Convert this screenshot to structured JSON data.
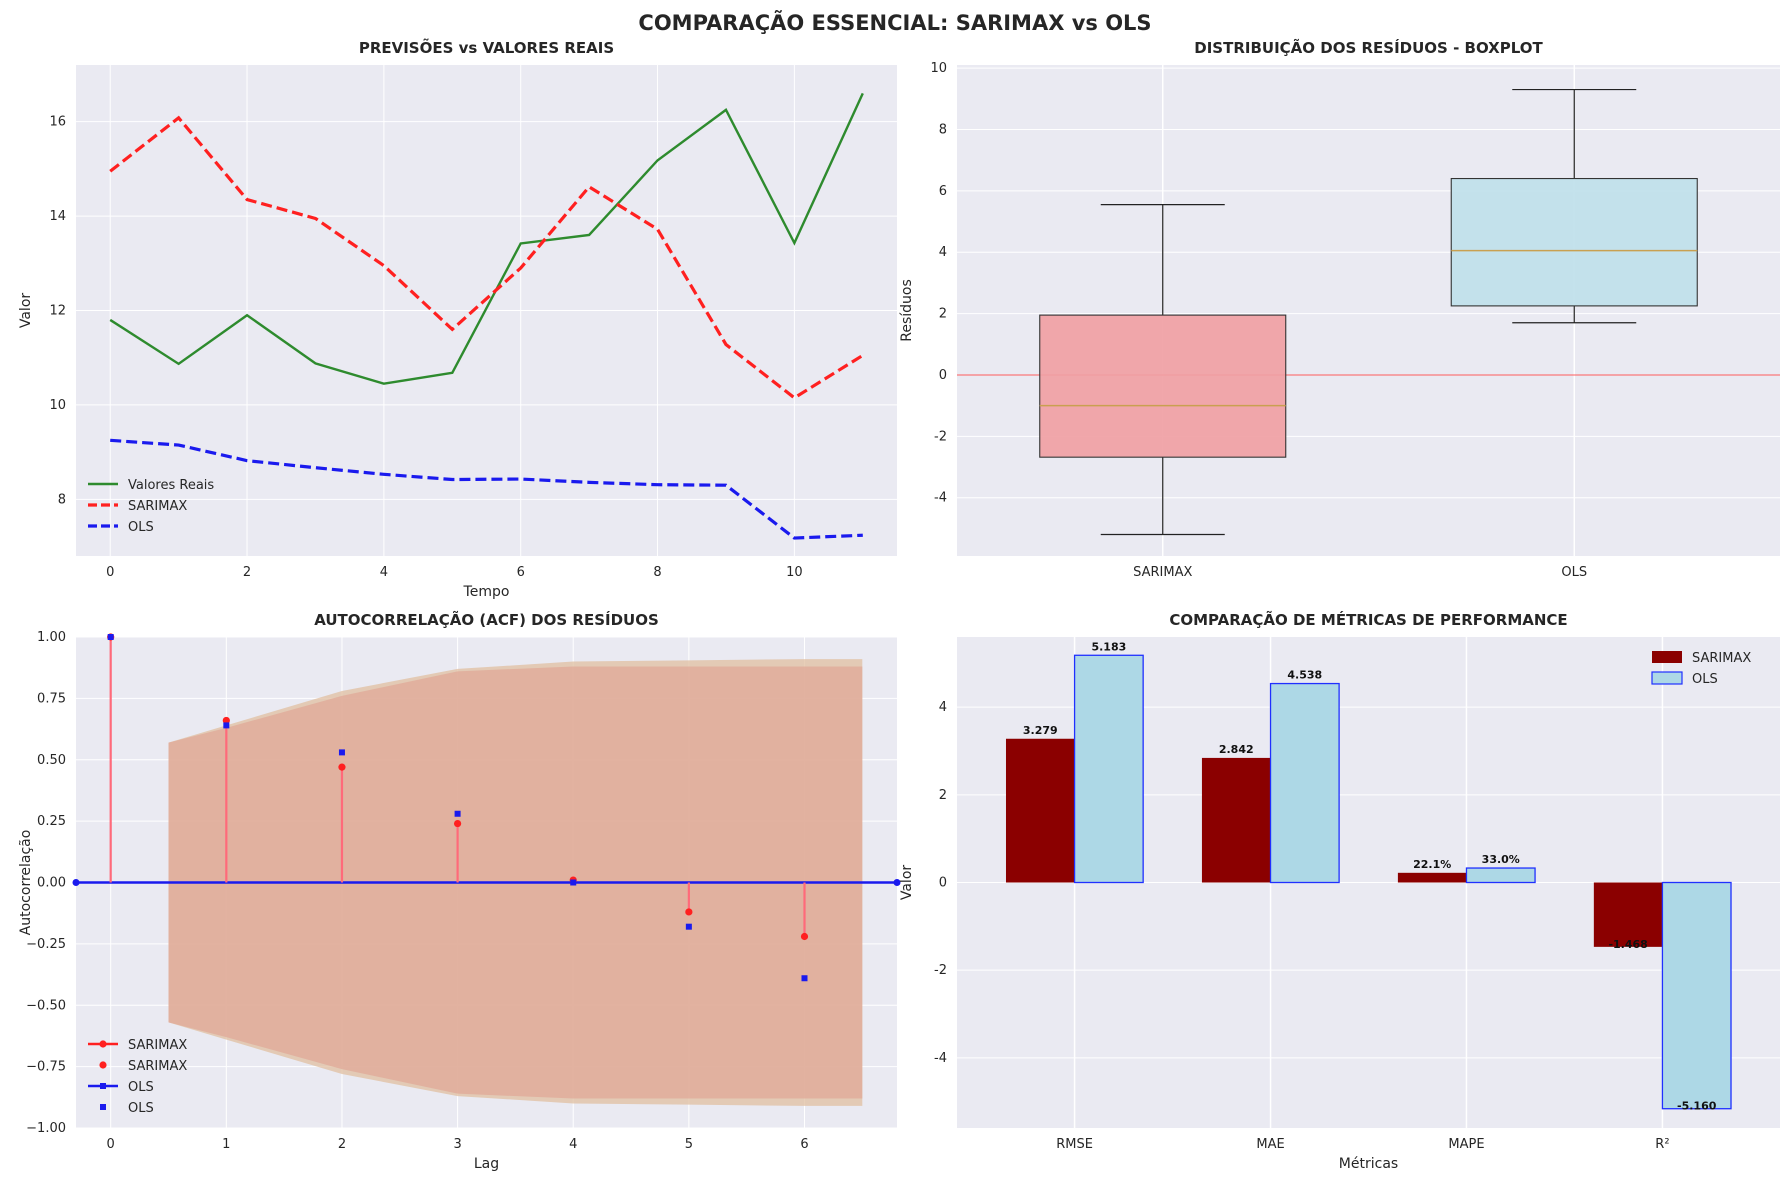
{
  "figure": {
    "title": "COMPARAÇÃO ESSENCIAL: SARIMAX vs OLS"
  },
  "colors": {
    "panel_bg": "#eaeaf2",
    "grid": "#ffffff",
    "real": "#2e8b2e",
    "sarimax": "#ff2020",
    "ols": "#1a1aee",
    "box_sarimax": "#f0a0a4",
    "box_ols": "#bfe0ea",
    "bar_sarimax": "#8b0000",
    "bar_ols": "#add8e6",
    "ci_fill": "#d4a08c"
  },
  "chart_data": [
    {
      "id": "forecast",
      "type": "line",
      "title": "PREVISÕES vs VALORES REAIS",
      "xlabel": "Tempo",
      "ylabel": "Valor",
      "xlim": [
        -0.5,
        11.5
      ],
      "ylim": [
        6.8,
        17.2
      ],
      "xticks": [
        0,
        2,
        4,
        6,
        8,
        10
      ],
      "yticks": [
        8,
        10,
        12,
        14,
        16
      ],
      "legend_position": "lower-left",
      "x": [
        0,
        1,
        2,
        3,
        4,
        5,
        6,
        7,
        8,
        9,
        10,
        11
      ],
      "series": [
        {
          "name": "Valores Reais",
          "style": "solid",
          "color": "#2e8b2e",
          "values": [
            11.8,
            10.87,
            11.9,
            10.88,
            10.45,
            10.68,
            13.42,
            13.6,
            15.18,
            16.25,
            13.43,
            16.6
          ]
        },
        {
          "name": "SARIMAX",
          "style": "dashed",
          "color": "#ff2020",
          "values": [
            14.95,
            16.08,
            14.35,
            13.95,
            12.95,
            11.6,
            12.9,
            14.62,
            13.72,
            11.28,
            10.15,
            11.05
          ]
        },
        {
          "name": "OLS",
          "style": "dashed",
          "color": "#1a1aee",
          "values": [
            9.25,
            9.15,
            8.82,
            8.67,
            8.53,
            8.42,
            8.43,
            8.36,
            8.31,
            8.3,
            7.18,
            7.24
          ]
        }
      ]
    },
    {
      "id": "boxplot",
      "type": "boxplot",
      "title": "DISTRIBUIÇÃO DOS RESÍDUOS - BOXPLOT",
      "xlabel": "",
      "ylabel": "Resíduos",
      "ylim": [
        -5.9,
        10.1
      ],
      "yticks": [
        -4,
        -2,
        0,
        2,
        4,
        6,
        8,
        10
      ],
      "zero_line": true,
      "boxes": [
        {
          "name": "SARIMAX",
          "whisker_low": -5.2,
          "q1": -2.68,
          "median": -1.0,
          "q3": 1.95,
          "whisker_high": 5.55,
          "color": "#f0a0a4"
        },
        {
          "name": "OLS",
          "whisker_low": 1.7,
          "q1": 2.25,
          "median": 4.05,
          "q3": 6.4,
          "whisker_high": 9.3,
          "color": "#bfe0ea"
        }
      ]
    },
    {
      "id": "acf",
      "type": "stem",
      "title": "AUTOCORRELAÇÃO (ACF) DOS RESÍDUOS",
      "xlabel": "Lag",
      "ylabel": "Autocorrelação",
      "xlim": [
        -0.3,
        6.8
      ],
      "ylim": [
        -1.0,
        1.0
      ],
      "xticks": [
        0,
        1,
        2,
        3,
        4,
        5,
        6
      ],
      "yticks": [
        -1.0,
        -0.75,
        -0.5,
        -0.25,
        0.0,
        0.25,
        0.5,
        0.75,
        1.0
      ],
      "ytick_labels": [
        "−1.00",
        "−0.75",
        "−0.50",
        "−0.25",
        "0.00",
        "0.25",
        "0.50",
        "0.75",
        "1.00"
      ],
      "legend_position": "lower-left",
      "legend": [
        "SARIMAX",
        "SARIMAX",
        "OLS",
        "OLS"
      ],
      "lags": [
        0,
        1,
        2,
        3,
        4,
        5,
        6
      ],
      "series": [
        {
          "name": "SARIMAX",
          "color": "#ff2020",
          "values": [
            1.0,
            0.66,
            0.47,
            0.24,
            0.01,
            -0.12,
            -0.22
          ]
        },
        {
          "name": "OLS",
          "color": "#1a1aee",
          "values": [
            1.0,
            0.64,
            0.53,
            0.28,
            0.0,
            -0.18,
            -0.39
          ]
        }
      ],
      "confidence_band": {
        "x": [
          0.5,
          1,
          2,
          3,
          4,
          5,
          6,
          6.5
        ],
        "upper_a": [
          0.57,
          0.63,
          0.76,
          0.86,
          0.88,
          0.88,
          0.88,
          0.88
        ],
        "upper_b": [
          0.57,
          0.64,
          0.78,
          0.87,
          0.9,
          0.905,
          0.91,
          0.91
        ]
      }
    },
    {
      "id": "metrics",
      "type": "bar",
      "title": "COMPARAÇÃO DE MÉTRICAS DE PERFORMANCE",
      "xlabel": "Métricas",
      "ylabel": "Valor",
      "ylim": [
        -5.6,
        5.6
      ],
      "yticks": [
        -4,
        -2,
        0,
        2,
        4
      ],
      "legend_position": "top-right",
      "categories": [
        "RMSE",
        "MAE",
        "MAPE",
        "R²"
      ],
      "series": [
        {
          "name": "SARIMAX",
          "color": "#8b0000",
          "values": [
            3.279,
            2.842,
            0.221,
            -1.468
          ],
          "labels": [
            "3.279",
            "2.842",
            "22.1%",
            "-1.468"
          ]
        },
        {
          "name": "OLS",
          "color": "#add8e6",
          "values": [
            5.183,
            4.538,
            0.33,
            -5.16
          ],
          "labels": [
            "5.183",
            "4.538",
            "33.0%",
            "-5.160"
          ]
        }
      ]
    }
  ]
}
